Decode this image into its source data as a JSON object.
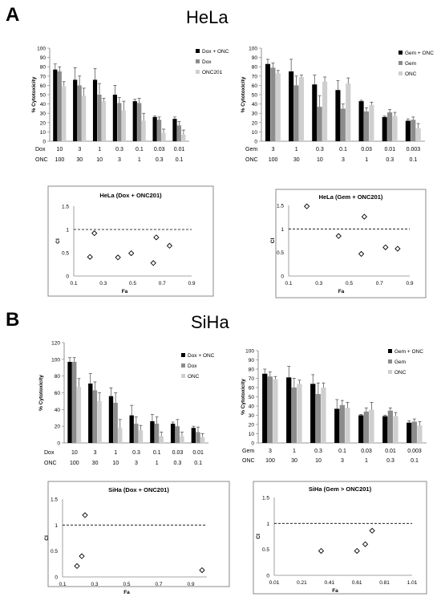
{
  "panels": [
    {
      "letter": "A",
      "title": "HeLa"
    },
    {
      "letter": "B",
      "title": "SiHa"
    }
  ],
  "colors": {
    "combo": "#000000",
    "drug": "#8c8c8c",
    "onc": "#cfcfcf"
  },
  "chart_data": [
    {
      "id": "hela_dox",
      "type": "bar",
      "ylabel": "% Cytotoxicity",
      "ylim": [
        0,
        100
      ],
      "yticks": [
        0,
        10,
        20,
        30,
        40,
        50,
        60,
        70,
        80,
        90,
        100
      ],
      "legend": "top-right",
      "row_labels": [
        "Dox",
        "ONC"
      ],
      "categories": [
        "10",
        "3",
        "1",
        "0.3",
        "0.1",
        "0.03",
        "0.01"
      ],
      "categories2": [
        "100",
        "30",
        "10",
        "3",
        "1",
        "0.3",
        "0.1"
      ],
      "series": [
        {
          "name": "Dox + ONC",
          "values": [
            77,
            66,
            66,
            50,
            43,
            26,
            24
          ],
          "errors": [
            6,
            13,
            12,
            10,
            2,
            1,
            2
          ]
        },
        {
          "name": "Dox",
          "values": [
            75,
            60,
            50,
            41,
            41,
            23,
            17
          ],
          "errors": [
            5,
            10,
            12,
            6,
            5,
            3,
            4
          ]
        },
        {
          "name": "ONC201",
          "values": [
            59,
            49,
            43,
            33,
            22,
            9,
            7
          ],
          "errors": [
            5,
            8,
            3,
            10,
            8,
            4,
            5
          ]
        }
      ]
    },
    {
      "id": "hela_gem",
      "type": "bar",
      "ylabel": "% Cytotoxicity",
      "ylim": [
        0,
        100
      ],
      "yticks": [
        0,
        10,
        20,
        30,
        40,
        50,
        60,
        70,
        80,
        90,
        100
      ],
      "legend": "top-right",
      "row_labels": [
        "Gem",
        "ONC"
      ],
      "categories": [
        "3",
        "1",
        "0.3",
        "0.1",
        "0.03",
        "0.01",
        "0.003"
      ],
      "categories2": [
        "100",
        "30",
        "10",
        "3",
        "1",
        "0.3",
        "0.1"
      ],
      "series": [
        {
          "name": "Gem + ONC",
          "values": [
            83,
            75,
            61,
            55,
            43,
            26,
            22
          ],
          "errors": [
            5,
            13,
            10,
            10,
            1,
            1,
            2
          ]
        },
        {
          "name": "Gem",
          "values": [
            79,
            60,
            37,
            35,
            32,
            31,
            23
          ],
          "errors": [
            5,
            10,
            12,
            5,
            4,
            3,
            3
          ]
        },
        {
          "name": "ONC",
          "values": [
            73,
            69,
            64,
            62,
            39,
            27,
            14
          ],
          "errors": [
            3,
            2,
            5,
            6,
            3,
            4,
            5
          ]
        }
      ]
    },
    {
      "id": "hela_dox_ci",
      "type": "scatter",
      "title": "HeLa (Dox + ONC201)",
      "xlabel": "Fa",
      "ylabel": "CI",
      "xlim": [
        0.1,
        0.9
      ],
      "xticks": [
        "0.1",
        "0.3",
        "0.5",
        "0.7",
        "0.9"
      ],
      "ylim": [
        0,
        1.5
      ],
      "yticks": [
        "0",
        "0.5",
        "1",
        "1.5"
      ],
      "reference_line": 1,
      "x": [
        0.21,
        0.24,
        0.4,
        0.49,
        0.64,
        0.66,
        0.75
      ],
      "y": [
        0.41,
        0.92,
        0.4,
        0.49,
        0.28,
        0.83,
        0.65
      ]
    },
    {
      "id": "hela_gem_ci",
      "type": "scatter",
      "title": "HeLa (Gem + ONC201)",
      "xlabel": "Fa",
      "ylabel": "CI",
      "xlim": [
        0.1,
        0.9
      ],
      "xticks": [
        "0.1",
        "0.3",
        "0.5",
        "0.7",
        "0.9"
      ],
      "ylim": [
        0,
        1.5
      ],
      "yticks": [
        "0",
        "0.5",
        "1",
        "1.5"
      ],
      "reference_line": 1,
      "x": [
        0.22,
        0.43,
        0.58,
        0.6,
        0.74,
        0.82
      ],
      "y": [
        1.48,
        0.85,
        0.47,
        1.26,
        0.61,
        0.58
      ]
    },
    {
      "id": "siha_dox",
      "type": "bar",
      "ylabel": "% Cytotoxicity",
      "ylim": [
        0,
        120
      ],
      "yticks": [
        0,
        20,
        40,
        60,
        80,
        100,
        120
      ],
      "legend": "top-right",
      "row_labels": [
        "Dox",
        "ONC"
      ],
      "categories": [
        "10",
        "3",
        "1",
        "0.3",
        "0.1",
        "0.03",
        "0.01"
      ],
      "categories2": [
        "100",
        "30",
        "10",
        "3",
        "1",
        "0.3",
        "0.1"
      ],
      "series": [
        {
          "name": "Dox + ONC",
          "values": [
            97,
            71,
            56,
            33,
            26,
            23,
            18
          ],
          "errors": [
            5,
            12,
            10,
            12,
            8,
            2,
            2
          ]
        },
        {
          "name": "Dox",
          "values": [
            97,
            63,
            48,
            23,
            23,
            20,
            13
          ],
          "errors": [
            5,
            10,
            12,
            8,
            8,
            8,
            6
          ]
        },
        {
          "name": "ONC",
          "values": [
            67,
            50,
            18,
            15,
            8,
            8,
            7
          ],
          "errors": [
            10,
            10,
            10,
            6,
            5,
            5,
            4
          ]
        }
      ]
    },
    {
      "id": "siha_gem",
      "type": "bar",
      "ylabel": "% Cytotoxicity",
      "ylim": [
        0,
        100
      ],
      "yticks": [
        0,
        10,
        20,
        30,
        40,
        50,
        60,
        70,
        80,
        90,
        100
      ],
      "legend": "top-right",
      "row_labels": [
        "Gem",
        "ONC"
      ],
      "categories": [
        "3",
        "1",
        "0.3",
        "0.1",
        "0.03",
        "0.01",
        "0.003"
      ],
      "categories2": [
        "100",
        "30",
        "10",
        "3",
        "1",
        "0.3",
        "0.1"
      ],
      "series": [
        {
          "name": "Gem + ONC",
          "values": [
            75,
            71,
            64,
            37,
            30,
            29,
            22
          ],
          "errors": [
            5,
            12,
            10,
            10,
            1,
            1,
            2
          ]
        },
        {
          "name": "Gem",
          "values": [
            72,
            60,
            53,
            41,
            34,
            35,
            23
          ],
          "errors": [
            5,
            10,
            12,
            5,
            4,
            3,
            3
          ]
        },
        {
          "name": "ONC",
          "values": [
            69,
            64,
            60,
            38,
            36,
            29,
            19
          ],
          "errors": [
            3,
            4,
            5,
            6,
            8,
            4,
            4
          ]
        }
      ]
    },
    {
      "id": "siha_dox_ci",
      "type": "scatter",
      "title": "SiHa (Dox + ONC201)",
      "xlabel": "Fa",
      "ylabel": "CI",
      "xlim": [
        0.1,
        1.0
      ],
      "xticks": [
        "0.1",
        "0.3",
        "0.5",
        "0.7",
        "0.9"
      ],
      "ylim": [
        0,
        1.5
      ],
      "yticks": [
        "0",
        "0.5",
        "1",
        "1.5"
      ],
      "reference_line": 1,
      "x": [
        0.19,
        0.22,
        0.24,
        0.97
      ],
      "y": [
        0.21,
        0.4,
        1.19,
        0.13
      ]
    },
    {
      "id": "siha_gem_ci",
      "type": "scatter",
      "title": "SiHa (Gem > ONC201)",
      "xlabel": "Fa",
      "ylabel": "CI",
      "xlim": [
        0.01,
        1.01
      ],
      "xticks": [
        "0.01",
        "0.21",
        "0.41",
        "0.61",
        "0.81",
        "1.01"
      ],
      "ylim": [
        0,
        1.5
      ],
      "yticks": [
        "0",
        "0.5",
        "1",
        "1.5"
      ],
      "reference_line": 1,
      "x": [
        0.35,
        0.61,
        0.67,
        0.72
      ],
      "y": [
        0.47,
        0.47,
        0.6,
        0.86
      ]
    }
  ]
}
